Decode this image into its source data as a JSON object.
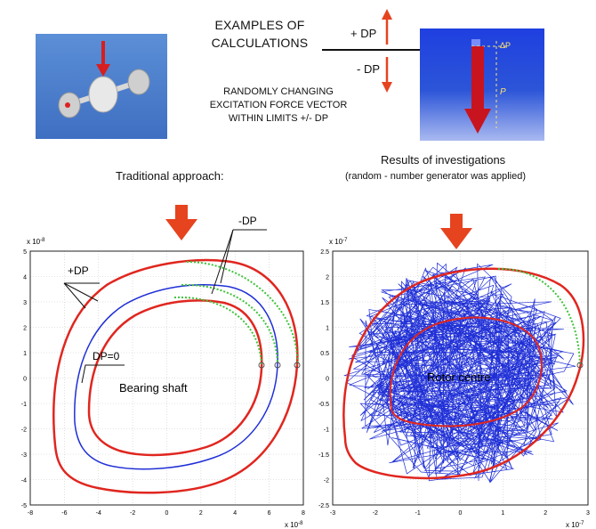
{
  "header": {
    "title_line1": "EXAMPLES  OF",
    "title_line2": "CALCULATIONS",
    "plus_dp": "+ DP",
    "minus_dp": "- DP",
    "desc_line1": "RANDOMLY  CHANGING",
    "desc_line2": "EXCITATION FORCE VECTOR",
    "desc_line3": "WITHIN  LIMITS  +/- DP",
    "right_img_dp": "ΔP",
    "right_img_p": "P"
  },
  "left": {
    "heading": "Traditional approach:",
    "exponent_y": "x 10",
    "exponent_y_pow": "-8",
    "exponent_x": "x 10",
    "exponent_x_pow": "-8",
    "label_plus": "+DP",
    "label_minus": "-DP",
    "label_zero": "DP=0",
    "label_center": "Bearing shaft",
    "yticks": [
      "5",
      "4",
      "3",
      "2",
      "1",
      "0",
      "-1",
      "-2",
      "-3",
      "-4",
      "-5"
    ],
    "xticks": [
      "-8",
      "-6",
      "-4",
      "-2",
      "0",
      "2",
      "4",
      "6",
      "8"
    ]
  },
  "right": {
    "heading": "Results  of  investigations",
    "subheading": "(random - number generator was applied)",
    "exponent_y": "x 10",
    "exponent_y_pow": "-7",
    "exponent_x": "x 10",
    "exponent_x_pow": "-7",
    "label_center": "Rotor centre",
    "yticks": [
      "2.5",
      "2",
      "1.5",
      "1",
      "0.5",
      "0",
      "-0.5",
      "-1",
      "-1.5",
      "-2",
      "-2.5"
    ],
    "xticks": [
      "-3",
      "-2",
      "-1",
      "0",
      "1",
      "2",
      "3"
    ]
  },
  "colors": {
    "orbit_red": "#e0261f",
    "orbit_blue": "#1f2fd6",
    "trace_green": "#3fc43a",
    "arrow_red": "#e6431f",
    "panel_blue": "#2f58c8"
  }
}
